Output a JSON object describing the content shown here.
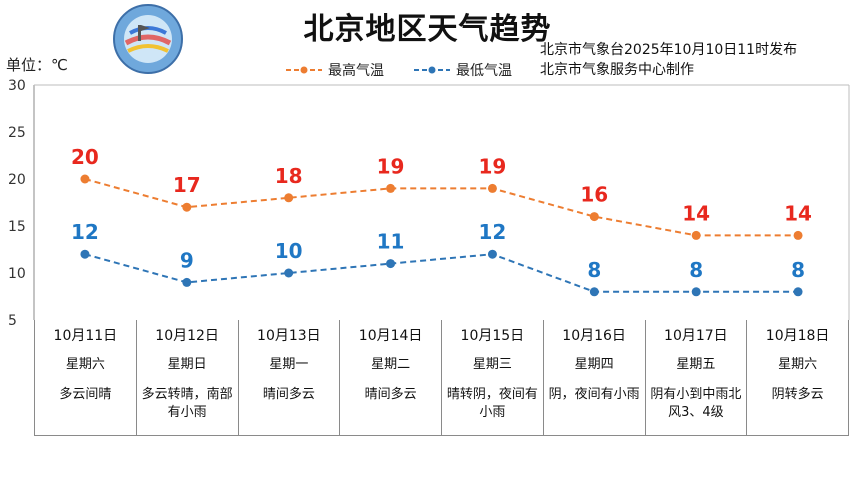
{
  "header": {
    "title": "北京地区天气趋势",
    "publisher_line1": "北京市气象台2025年10月10日11时发布",
    "publisher_line2": "北京市气象服务中心制作",
    "unit_label": "单位：℃"
  },
  "legend": [
    {
      "label": "最高气温",
      "color": "#ed7d31"
    },
    {
      "label": "最低气温",
      "color": "#2e75b6"
    }
  ],
  "chart_data": {
    "type": "line",
    "ylim": [
      5,
      30
    ],
    "yticks": [
      "5",
      "10",
      "15",
      "20",
      "25",
      "30"
    ],
    "categories": [
      "10月11日",
      "10月12日",
      "10月13日",
      "10月14日",
      "10月15日",
      "10月16日",
      "10月17日",
      "10月18日"
    ],
    "series": [
      {
        "name": "最高气温",
        "values": [
          20,
          17,
          18,
          19,
          19,
          16,
          14,
          14
        ],
        "line_color": "#ed7d31",
        "label_color": "#e8281e"
      },
      {
        "name": "最低气温",
        "values": [
          12,
          9,
          10,
          11,
          12,
          8,
          8,
          8
        ],
        "line_color": "#2e75b6",
        "label_color": "#1f77c4"
      }
    ]
  },
  "days": [
    {
      "date": "10月11日",
      "weekday": "星期六",
      "weather": "多云间晴"
    },
    {
      "date": "10月12日",
      "weekday": "星期日",
      "weather": "多云转晴，南部有小雨"
    },
    {
      "date": "10月13日",
      "weekday": "星期一",
      "weather": "晴间多云"
    },
    {
      "date": "10月14日",
      "weekday": "星期二",
      "weather": "晴间多云"
    },
    {
      "date": "10月15日",
      "weekday": "星期三",
      "weather": "晴转阴，夜间有小雨"
    },
    {
      "date": "10月16日",
      "weekday": "星期四",
      "weather": "阴，夜间有小雨"
    },
    {
      "date": "10月17日",
      "weekday": "星期五",
      "weather": "阴有小到中雨北风3、4级"
    },
    {
      "date": "10月18日",
      "weekday": "星期六",
      "weather": "阴转多云"
    }
  ]
}
